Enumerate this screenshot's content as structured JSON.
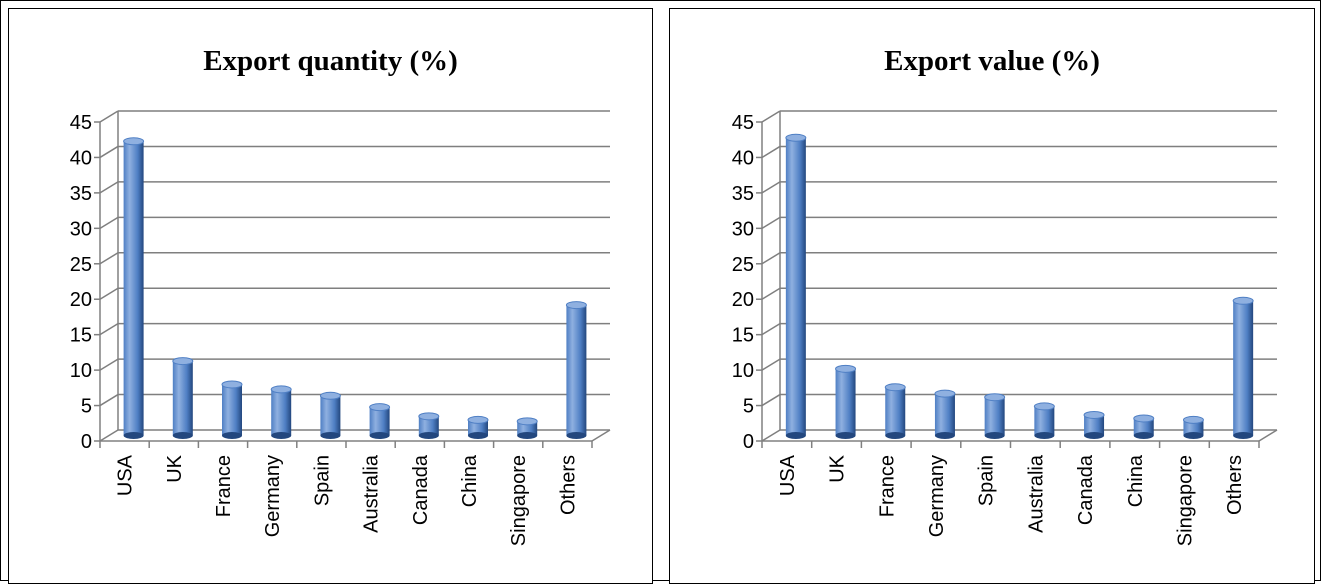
{
  "chart_data": [
    {
      "type": "bar",
      "title": "Export quantity (%)",
      "categories": [
        "USA",
        "UK",
        "France",
        "Germany",
        "Spain",
        "Australia",
        "Canada",
        "China",
        "Singapore",
        "Others"
      ],
      "values": [
        41.5,
        10.5,
        7.2,
        6.5,
        5.6,
        4.0,
        2.7,
        2.2,
        2.0,
        18.4
      ],
      "ylim": [
        0,
        45
      ],
      "yticks": [
        "0",
        "5",
        "10",
        "15",
        "20",
        "25",
        "30",
        "35",
        "40",
        "45"
      ],
      "grid": true,
      "bar_style": "3d-cylinder"
    },
    {
      "type": "bar",
      "title": "Export value (%)",
      "categories": [
        "USA",
        "UK",
        "France",
        "Germany",
        "Spain",
        "Australia",
        "Canada",
        "China",
        "Singapore",
        "Others"
      ],
      "values": [
        42.0,
        9.4,
        6.8,
        5.9,
        5.4,
        4.1,
        2.9,
        2.4,
        2.2,
        19.0
      ],
      "ylim": [
        0,
        45
      ],
      "yticks": [
        "0",
        "5",
        "10",
        "15",
        "20",
        "25",
        "30",
        "35",
        "40",
        "45"
      ],
      "grid": true,
      "bar_style": "3d-cylinder"
    }
  ],
  "colors": {
    "bar_light": "#8fb0e0",
    "bar_main": "#4f7fc4",
    "bar_dark": "#23477e",
    "grid": "#7f7f7f",
    "axis": "#808080"
  }
}
